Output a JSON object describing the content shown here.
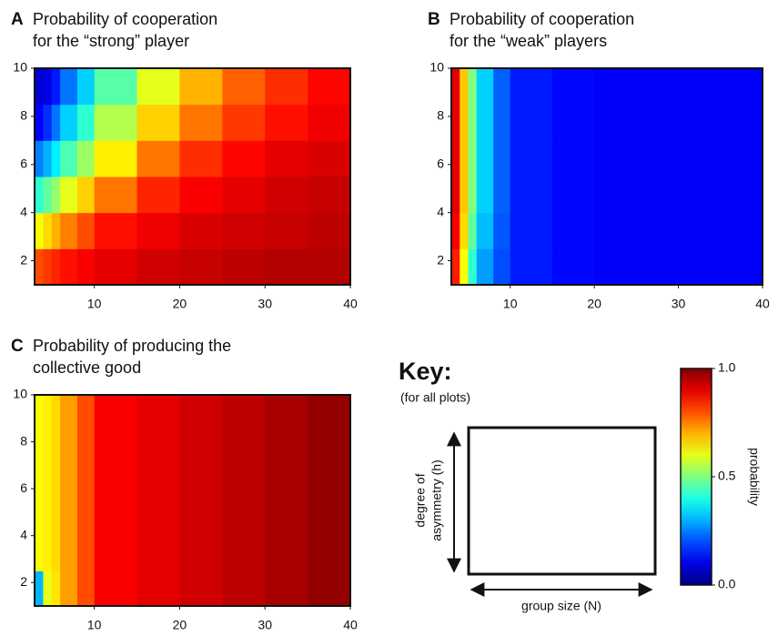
{
  "chart_data": [
    {
      "type": "heatmap",
      "panel": "A",
      "title": [
        "Probability of cooperation",
        "for the “strong” player"
      ],
      "colormap": "jet",
      "xlim": [
        3,
        40
      ],
      "ylim": [
        1,
        10
      ],
      "xticks": [
        10,
        20,
        30,
        40
      ],
      "yticks": [
        2,
        4,
        6,
        8,
        10
      ],
      "xbins": [
        3,
        4,
        5,
        6,
        8,
        10,
        15,
        20,
        25,
        30,
        35,
        40
      ],
      "ybins": [
        1,
        2.5,
        4,
        5.5,
        7,
        8.5,
        10
      ],
      "z": [
        [
          0.8,
          0.82,
          0.84,
          0.86,
          0.88,
          0.9,
          0.92,
          0.93,
          0.94,
          0.95,
          0.95
        ],
        [
          0.62,
          0.66,
          0.7,
          0.75,
          0.8,
          0.86,
          0.89,
          0.91,
          0.92,
          0.93,
          0.94
        ],
        [
          0.42,
          0.47,
          0.52,
          0.6,
          0.67,
          0.76,
          0.84,
          0.88,
          0.9,
          0.92,
          0.93
        ],
        [
          0.25,
          0.3,
          0.36,
          0.45,
          0.53,
          0.64,
          0.76,
          0.83,
          0.87,
          0.9,
          0.91
        ],
        [
          0.12,
          0.17,
          0.24,
          0.33,
          0.42,
          0.55,
          0.67,
          0.76,
          0.82,
          0.86,
          0.89
        ],
        [
          0.08,
          0.1,
          0.15,
          0.24,
          0.33,
          0.46,
          0.6,
          0.7,
          0.78,
          0.83,
          0.87
        ]
      ]
    },
    {
      "type": "heatmap",
      "panel": "B",
      "title": [
        "Probability of cooperation",
        "for the “weak” players"
      ],
      "colormap": "jet",
      "xlim": [
        3,
        40
      ],
      "ylim": [
        1,
        10
      ],
      "xticks": [
        10,
        20,
        30,
        40
      ],
      "yticks": [
        2,
        4,
        6,
        8,
        10
      ],
      "xbins": [
        3,
        4,
        5,
        6,
        8,
        10,
        15,
        20,
        25,
        30,
        35,
        40
      ],
      "ybins": [
        1,
        2.5,
        4,
        5.5,
        7,
        8.5,
        10
      ],
      "z": [
        [
          0.85,
          0.62,
          0.42,
          0.28,
          0.2,
          0.15,
          0.13,
          0.12,
          0.12,
          0.12,
          0.12
        ],
        [
          0.88,
          0.66,
          0.47,
          0.31,
          0.21,
          0.15,
          0.13,
          0.12,
          0.12,
          0.12,
          0.12
        ],
        [
          0.9,
          0.68,
          0.5,
          0.33,
          0.22,
          0.15,
          0.13,
          0.12,
          0.12,
          0.12,
          0.12
        ],
        [
          0.9,
          0.68,
          0.5,
          0.33,
          0.22,
          0.15,
          0.13,
          0.12,
          0.12,
          0.12,
          0.12
        ],
        [
          0.9,
          0.68,
          0.5,
          0.33,
          0.22,
          0.15,
          0.13,
          0.12,
          0.12,
          0.12,
          0.12
        ],
        [
          0.9,
          0.68,
          0.5,
          0.33,
          0.22,
          0.15,
          0.13,
          0.12,
          0.12,
          0.12,
          0.12
        ]
      ]
    },
    {
      "type": "heatmap",
      "panel": "C",
      "title": [
        "Probability of producing the",
        "collective good"
      ],
      "colormap": "jet",
      "xlim": [
        3,
        40
      ],
      "ylim": [
        1,
        10
      ],
      "xticks": [
        10,
        20,
        30,
        40
      ],
      "yticks": [
        2,
        4,
        6,
        8,
        10
      ],
      "xbins": [
        3,
        4,
        5,
        6,
        8,
        10,
        15,
        20,
        25,
        30,
        35,
        40
      ],
      "ybins": [
        1,
        2.5,
        4,
        5.5,
        7,
        8.5,
        10
      ],
      "z": [
        [
          0.3,
          0.6,
          0.65,
          0.72,
          0.8,
          0.88,
          0.9,
          0.92,
          0.94,
          0.96,
          0.98
        ],
        [
          0.62,
          0.64,
          0.66,
          0.72,
          0.8,
          0.88,
          0.9,
          0.92,
          0.94,
          0.96,
          0.98
        ],
        [
          0.62,
          0.64,
          0.66,
          0.72,
          0.8,
          0.88,
          0.9,
          0.92,
          0.94,
          0.96,
          0.98
        ],
        [
          0.62,
          0.64,
          0.66,
          0.72,
          0.8,
          0.88,
          0.9,
          0.92,
          0.94,
          0.96,
          0.98
        ],
        [
          0.62,
          0.64,
          0.66,
          0.72,
          0.8,
          0.88,
          0.9,
          0.92,
          0.94,
          0.96,
          0.98
        ],
        [
          0.62,
          0.64,
          0.66,
          0.72,
          0.8,
          0.88,
          0.9,
          0.92,
          0.94,
          0.96,
          0.98
        ]
      ]
    },
    {
      "type": "colorbar",
      "colormap": "jet",
      "label": "probability",
      "ylim": [
        0,
        1
      ],
      "yticks": [
        {
          "value": 0,
          "label": "0.0"
        },
        {
          "value": 0.5,
          "label": "0.5"
        },
        {
          "value": 1,
          "label": "1.0"
        }
      ]
    }
  ],
  "key": {
    "title": "Key:",
    "subtitle": "(for all plots)",
    "y_label": [
      "degree of",
      "asymmetry (h)"
    ],
    "x_label": "group size (N)"
  }
}
